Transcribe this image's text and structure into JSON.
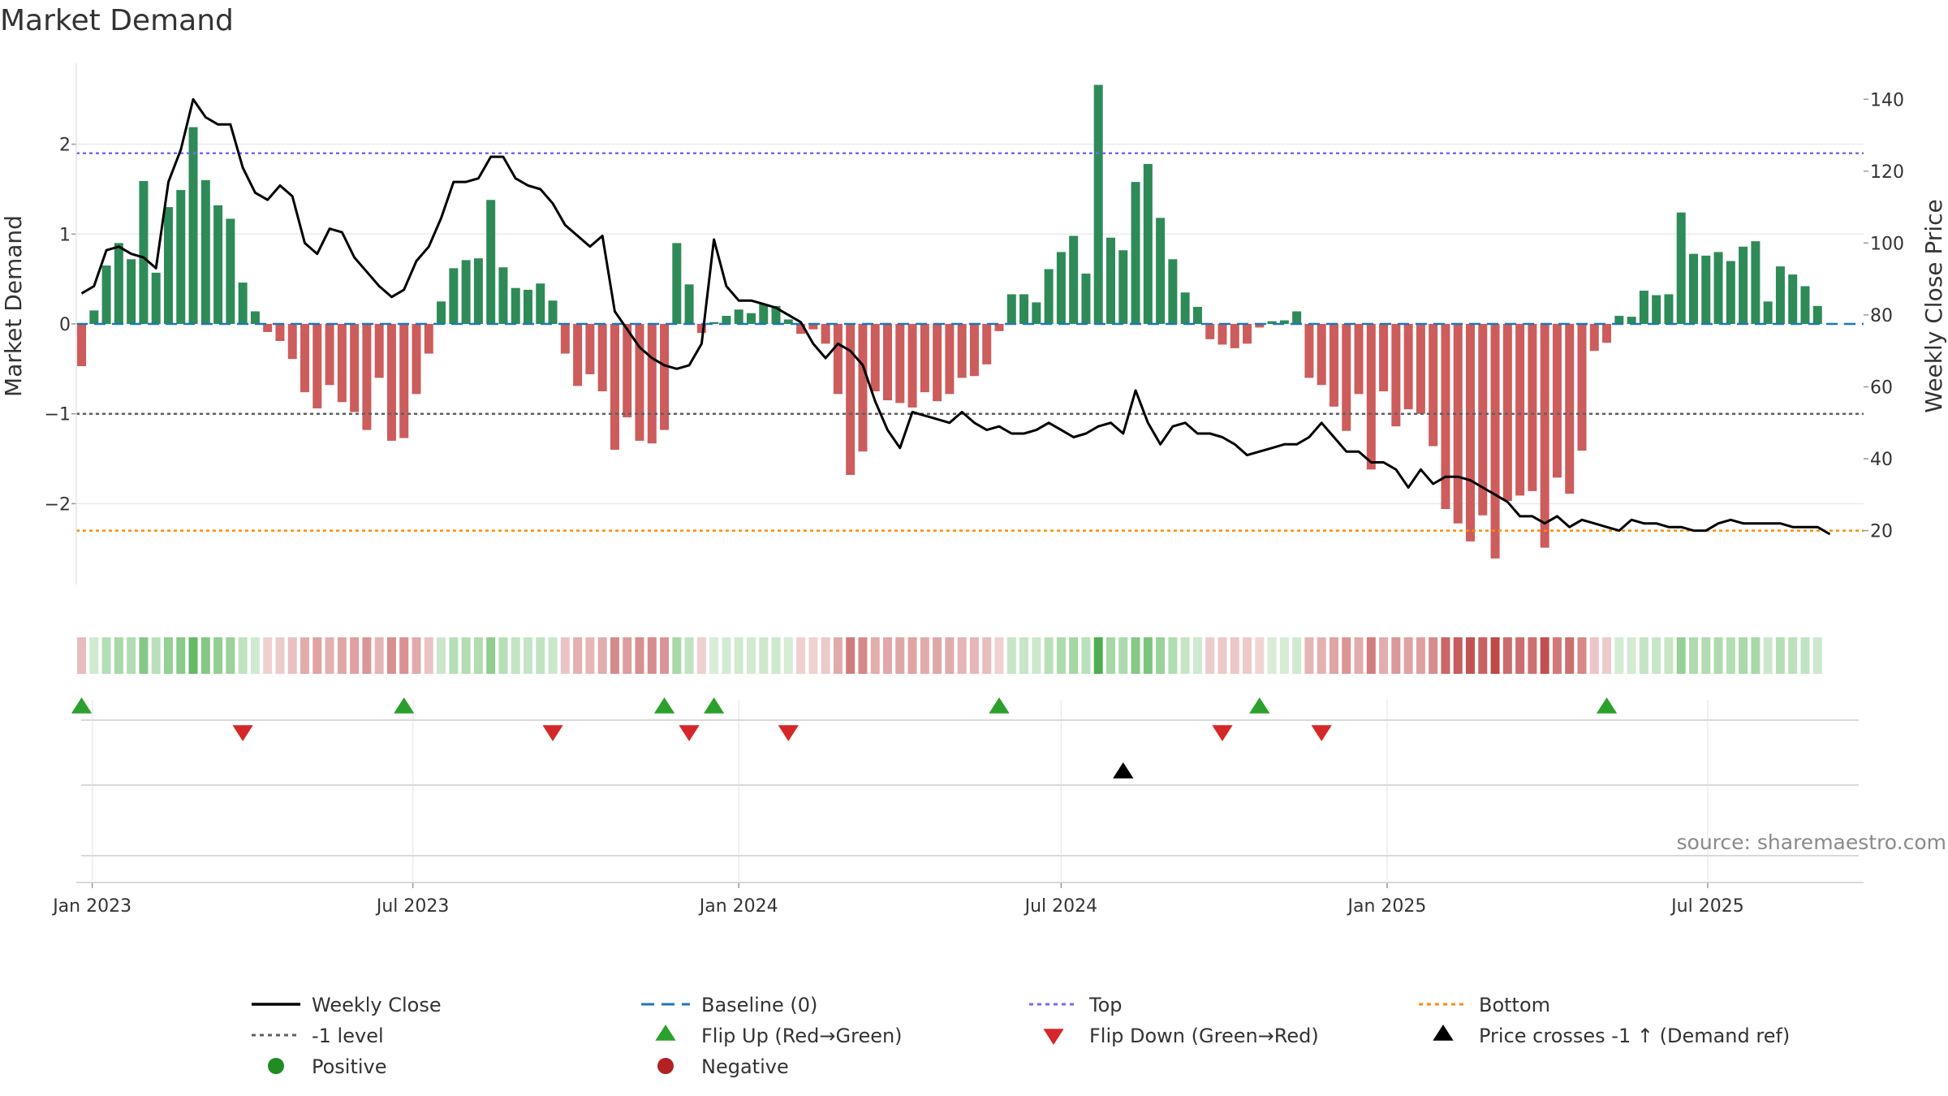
{
  "title": "Market Demand",
  "source": "source: sharemaestro.com",
  "colors": {
    "positive": "#2e8b57",
    "negative": "#cd5c5c",
    "price": "#000000",
    "top": "#7b68ee",
    "bottom": "#ff8c00",
    "level": "#606060",
    "baseline": "#1f77b4",
    "flip_up": "#2ca02c",
    "flip_down": "#d62728"
  },
  "chart_data": {
    "type": "bar",
    "title": "Market Demand",
    "ylabel_left": "Market Demand",
    "ylabel_right": "Weekly Close Price",
    "ylim_left": [
      -2.9,
      2.9
    ],
    "ylim_right": [
      5,
      150
    ],
    "yticks_left": [
      2,
      1,
      0,
      -1,
      -2
    ],
    "ytick_labels_left": [
      "2",
      "1",
      "0",
      "−1",
      "−2"
    ],
    "yticks_right": [
      140,
      120,
      100,
      80,
      60,
      40,
      20
    ],
    "ytick_labels_right": [
      "140",
      "120",
      "100",
      "80",
      "60",
      "40",
      "20"
    ],
    "x_start": "2022-12-23",
    "x_end": "2025-09-27",
    "xticks": [
      {
        "date": "2023-01-01",
        "label": "Jan 2023"
      },
      {
        "date": "2023-07-01",
        "label": "Jul 2023"
      },
      {
        "date": "2024-01-01",
        "label": "Jan 2024"
      },
      {
        "date": "2024-07-01",
        "label": "Jul 2024"
      },
      {
        "date": "2025-01-01",
        "label": "Jan 2025"
      },
      {
        "date": "2025-07-01",
        "label": "Jul 2025"
      }
    ],
    "first_week": "2022-12-26",
    "reference_lines": {
      "top": 1.9,
      "minus_one_level": -1,
      "bottom": -2.3,
      "baseline": 0
    },
    "demand": [
      -0.47,
      0.15,
      0.65,
      0.9,
      0.72,
      1.59,
      0.57,
      1.3,
      1.49,
      2.19,
      1.6,
      1.32,
      1.17,
      0.46,
      0.14,
      -0.09,
      -0.19,
      -0.39,
      -0.76,
      -0.94,
      -0.68,
      -0.87,
      -0.98,
      -1.18,
      -0.6,
      -1.3,
      -1.27,
      -0.78,
      -0.33,
      0.25,
      0.62,
      0.71,
      0.73,
      1.38,
      0.63,
      0.4,
      0.38,
      0.45,
      0.26,
      -0.33,
      -0.69,
      -0.56,
      -0.75,
      -1.4,
      -1.04,
      -1.3,
      -1.33,
      -1.18,
      0.9,
      0.44,
      -0.1,
      0.02,
      0.09,
      0.16,
      0.12,
      0.22,
      0.2,
      0.05,
      -0.11,
      -0.06,
      -0.22,
      -0.78,
      -1.68,
      -1.42,
      -0.75,
      -0.85,
      -0.88,
      -0.93,
      -0.76,
      -0.86,
      -0.78,
      -0.6,
      -0.58,
      -0.45,
      -0.08,
      0.33,
      0.33,
      0.24,
      0.61,
      0.8,
      0.98,
      0.56,
      2.66,
      0.96,
      0.82,
      1.58,
      1.78,
      1.18,
      0.72,
      0.35,
      0.19,
      -0.17,
      -0.23,
      -0.27,
      -0.22,
      -0.04,
      0.03,
      0.04,
      0.14,
      -0.6,
      -0.68,
      -0.92,
      -1.19,
      -0.78,
      -1.62,
      -0.75,
      -1.14,
      -0.95,
      -1.0,
      -1.36,
      -2.06,
      -2.22,
      -2.42,
      -2.13,
      -2.61,
      -1.97,
      -1.91,
      -1.86,
      -2.49,
      -1.71,
      -1.89,
      -1.41,
      -0.3,
      -0.21,
      0.09,
      0.08,
      0.37,
      0.32,
      0.33,
      1.24,
      0.78,
      0.76,
      0.8,
      0.7,
      0.86,
      0.92,
      0.25,
      0.64,
      0.55,
      0.42,
      0.2
    ],
    "price": [
      86,
      88,
      98,
      99,
      97,
      96,
      93,
      117,
      126,
      140,
      135,
      133,
      133,
      121,
      114,
      112,
      116,
      113,
      100,
      97,
      104,
      103,
      96,
      92,
      88,
      85,
      87,
      95,
      99,
      107,
      117,
      117,
      118,
      124,
      124,
      118,
      116,
      115,
      111,
      105,
      102,
      99,
      102,
      81,
      76,
      71,
      68,
      66,
      65,
      66,
      72,
      101,
      88,
      84,
      84,
      83,
      82,
      80,
      78,
      72,
      68,
      72,
      70,
      66,
      56,
      48,
      43,
      53,
      52,
      51,
      50,
      53,
      50,
      48,
      49,
      47,
      47,
      48,
      50,
      48,
      46,
      47,
      49,
      50,
      47,
      59,
      50,
      44,
      49,
      50,
      47,
      47,
      46,
      44,
      41,
      42,
      43,
      44,
      44,
      46,
      50,
      46,
      42,
      42,
      39,
      39,
      37,
      32,
      37,
      33,
      35,
      35,
      34,
      32,
      30,
      28,
      24,
      24,
      22,
      24,
      21,
      23,
      22,
      21,
      20,
      23,
      22,
      22,
      21,
      21,
      20,
      20,
      22,
      23,
      22,
      22,
      22,
      22,
      21,
      21,
      21,
      19
    ],
    "flip_up": [
      "2022-12-26",
      "2023-06-26",
      "2023-11-20",
      "2023-12-18",
      "2024-05-27",
      "2024-10-21",
      "2025-05-05"
    ],
    "flip_down": [
      "2023-03-27",
      "2023-09-18",
      "2023-12-04",
      "2024-01-29",
      "2024-09-30",
      "2024-11-25"
    ],
    "price_cross": [
      "2024-08-05"
    ]
  },
  "legend": [
    {
      "label": "Weekly Close",
      "symbol": "line-solid",
      "color": "#000000"
    },
    {
      "label": "Baseline (0)",
      "symbol": "line-dashed",
      "color": "#1f77b4"
    },
    {
      "label": "Top",
      "symbol": "line-dotted",
      "color": "#7b68ee"
    },
    {
      "label": "Bottom",
      "symbol": "line-dotted",
      "color": "#ff8c00"
    },
    {
      "label": "-1 level",
      "symbol": "line-dotted",
      "color": "#606060"
    },
    {
      "label": "Flip Up (Red→Green)",
      "symbol": "triangle-up",
      "color": "#2ca02c"
    },
    {
      "label": "Flip Down (Green→Red)",
      "symbol": "triangle-down",
      "color": "#d62728"
    },
    {
      "label": "Price crosses -1 ↑ (Demand ref)",
      "symbol": "triangle-up",
      "color": "#000000"
    },
    {
      "label": "Positive",
      "symbol": "dot",
      "color": "#228b22"
    },
    {
      "label": "Negative",
      "symbol": "dot",
      "color": "#b22222"
    }
  ]
}
